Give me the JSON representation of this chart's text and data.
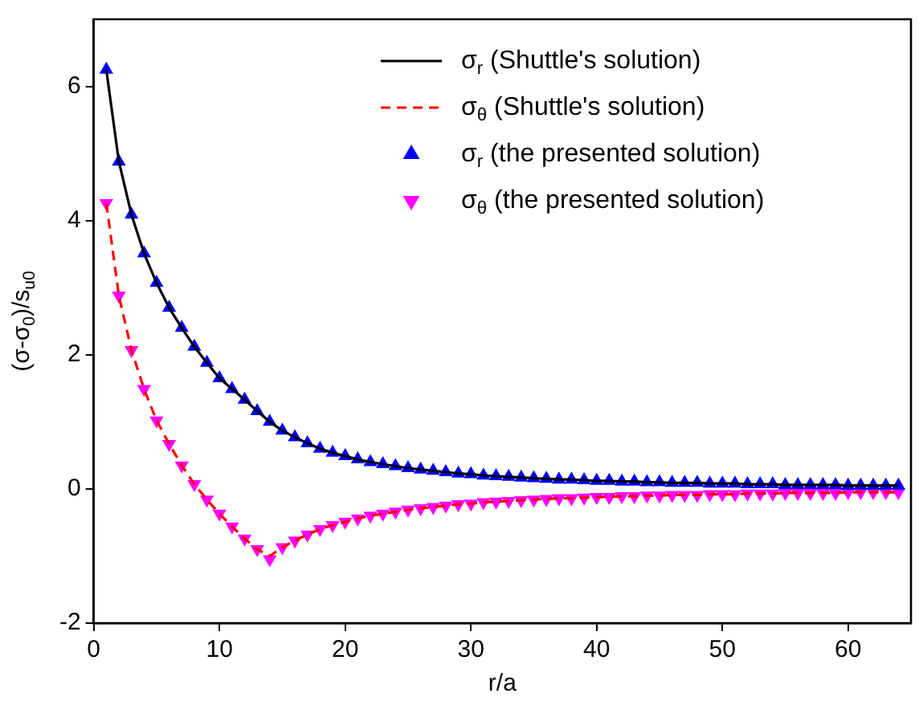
{
  "chart_data": {
    "type": "line",
    "xlabel": "r/a",
    "ylabel": "(σ-σ$_{0}$)/s$_{u0}$",
    "x": [
      1,
      2,
      3,
      4,
      5,
      6,
      7,
      8,
      9,
      10,
      11,
      12,
      13,
      14,
      15,
      16,
      17,
      18,
      19,
      20,
      21,
      22,
      23,
      24,
      25,
      26,
      27,
      28,
      29,
      30,
      31,
      32,
      33,
      34,
      35,
      36,
      37,
      38,
      39,
      40,
      41,
      42,
      43,
      44,
      45,
      46,
      47,
      48,
      49,
      50,
      51,
      52,
      53,
      54,
      55,
      56,
      57,
      58,
      59,
      60,
      61,
      62,
      63,
      64
    ],
    "series": [
      {
        "name": "σ$_{r}$ (Shuttle's solution)",
        "type": "line",
        "color": "#000000",
        "line_style": "solid",
        "marker": "none",
        "values": [
          6.25,
          4.88,
          4.09,
          3.51,
          3.07,
          2.7,
          2.4,
          2.12,
          1.88,
          1.65,
          1.49,
          1.33,
          1.16,
          1.0,
          0.87,
          0.77,
          0.68,
          0.6,
          0.54,
          0.49,
          0.44,
          0.4,
          0.37,
          0.34,
          0.31,
          0.29,
          0.27,
          0.25,
          0.23,
          0.22,
          0.2,
          0.19,
          0.18,
          0.17,
          0.16,
          0.15,
          0.14,
          0.14,
          0.13,
          0.12,
          0.12,
          0.11,
          0.11,
          0.1,
          0.1,
          0.09,
          0.09,
          0.09,
          0.08,
          0.08,
          0.08,
          0.07,
          0.07,
          0.07,
          0.06,
          0.06,
          0.06,
          0.06,
          0.06,
          0.05,
          0.05,
          0.05,
          0.05,
          0.05
        ]
      },
      {
        "name": "σ$_{θ}$ (Shuttle's solution)",
        "type": "line",
        "color": "#ff0000",
        "line_style": "dashed",
        "marker": "none",
        "values": [
          4.26,
          2.88,
          2.07,
          1.49,
          1.02,
          0.67,
          0.35,
          0.07,
          -0.16,
          -0.37,
          -0.56,
          -0.74,
          -0.9,
          -1.0,
          -0.87,
          -0.77,
          -0.68,
          -0.6,
          -0.54,
          -0.49,
          -0.44,
          -0.4,
          -0.37,
          -0.34,
          -0.31,
          -0.29,
          -0.27,
          -0.25,
          -0.23,
          -0.22,
          -0.2,
          -0.19,
          -0.18,
          -0.17,
          -0.16,
          -0.15,
          -0.14,
          -0.14,
          -0.13,
          -0.12,
          -0.12,
          -0.11,
          -0.11,
          -0.1,
          -0.1,
          -0.09,
          -0.09,
          -0.09,
          -0.08,
          -0.08,
          -0.08,
          -0.07,
          -0.07,
          -0.07,
          -0.06,
          -0.06,
          -0.06,
          -0.06,
          -0.06,
          -0.05,
          -0.05,
          -0.05,
          -0.05,
          -0.05
        ]
      },
      {
        "name": "σ$_{r}$ (the presented solution)",
        "type": "scatter",
        "color": "#0000ff",
        "marker": "triangle",
        "values": [
          6.25,
          4.88,
          4.09,
          3.51,
          3.07,
          2.7,
          2.4,
          2.12,
          1.88,
          1.65,
          1.49,
          1.33,
          1.16,
          1.0,
          0.87,
          0.77,
          0.68,
          0.6,
          0.54,
          0.49,
          0.44,
          0.4,
          0.37,
          0.34,
          0.31,
          0.29,
          0.27,
          0.25,
          0.23,
          0.22,
          0.2,
          0.19,
          0.18,
          0.17,
          0.16,
          0.15,
          0.14,
          0.14,
          0.13,
          0.12,
          0.12,
          0.11,
          0.11,
          0.1,
          0.1,
          0.09,
          0.09,
          0.09,
          0.08,
          0.08,
          0.08,
          0.07,
          0.07,
          0.07,
          0.06,
          0.06,
          0.06,
          0.06,
          0.06,
          0.05,
          0.05,
          0.05,
          0.05,
          0.05
        ]
      },
      {
        "name": "σ$_{θ}$ (the presented solution)",
        "type": "scatter",
        "color": "#ff00ff",
        "marker": "triangle-down",
        "values": [
          4.26,
          2.88,
          2.07,
          1.49,
          1.02,
          0.67,
          0.35,
          0.07,
          -0.16,
          -0.37,
          -0.56,
          -0.74,
          -0.9,
          -1.05,
          -0.87,
          -0.77,
          -0.68,
          -0.6,
          -0.54,
          -0.49,
          -0.44,
          -0.4,
          -0.37,
          -0.34,
          -0.31,
          -0.29,
          -0.27,
          -0.25,
          -0.23,
          -0.22,
          -0.2,
          -0.19,
          -0.18,
          -0.17,
          -0.16,
          -0.15,
          -0.14,
          -0.14,
          -0.13,
          -0.12,
          -0.12,
          -0.11,
          -0.11,
          -0.1,
          -0.1,
          -0.09,
          -0.09,
          -0.09,
          -0.08,
          -0.08,
          -0.08,
          -0.07,
          -0.07,
          -0.07,
          -0.06,
          -0.06,
          -0.06,
          -0.06,
          -0.06,
          -0.05,
          -0.05,
          -0.05,
          -0.05,
          -0.05
        ]
      }
    ],
    "xlim": [
      0,
      65
    ],
    "xticks": [
      0,
      10,
      20,
      30,
      40,
      50,
      60
    ],
    "ylim": [
      -2,
      7
    ],
    "yticks": [
      -2,
      0,
      2,
      4,
      6
    ],
    "grid": false,
    "legend": "top right"
  }
}
